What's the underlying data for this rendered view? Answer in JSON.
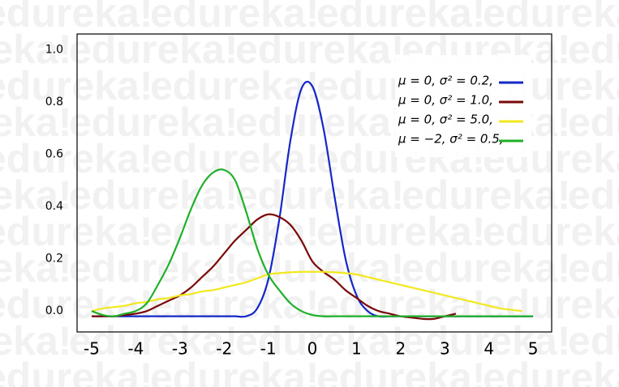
{
  "chart_data": {
    "type": "line",
    "watermark": "edureka!",
    "x": [
      -5,
      -4.75,
      -4.5,
      -4.25,
      -4,
      -3.75,
      -3.5,
      -3.25,
      -3,
      -2.75,
      -2.5,
      -2.25,
      -2,
      -1.75,
      -1.5,
      -1.25,
      -1,
      -0.75,
      -0.5,
      -0.25,
      0,
      0.25,
      0.5,
      0.75,
      1,
      1.25,
      1.5,
      1.75,
      2,
      2.25,
      2.5,
      2.75,
      3,
      3.25,
      3.5,
      3.75,
      4,
      4.25,
      4.5,
      4.75,
      5
    ],
    "series": [
      {
        "name": "μ = 0,   σ² = 0.2,",
        "color": "#1428c8",
        "values": [
          -0.02,
          -0.02,
          -0.02,
          -0.02,
          -0.02,
          -0.02,
          -0.02,
          -0.02,
          -0.02,
          -0.02,
          -0.02,
          -0.02,
          -0.02,
          -0.02,
          -0.02,
          0.01,
          0.12,
          0.35,
          0.65,
          0.85,
          0.86,
          0.7,
          0.44,
          0.2,
          0.06,
          0.0,
          -0.02,
          -0.02,
          -0.02,
          -0.02,
          -0.02,
          -0.02,
          -0.02,
          -0.02,
          -0.02,
          -0.02,
          -0.02,
          -0.02,
          -0.02,
          -0.02,
          -0.02
        ]
      },
      {
        "name": "μ = 0,   σ² = 1.0,",
        "color": "#7a0808",
        "values": [
          -0.02,
          -0.02,
          -0.02,
          -0.015,
          -0.01,
          0.0,
          0.02,
          0.04,
          0.06,
          0.09,
          0.13,
          0.17,
          0.22,
          0.27,
          0.31,
          0.35,
          0.37,
          0.36,
          0.33,
          0.27,
          0.19,
          0.15,
          0.12,
          0.08,
          0.05,
          0.02,
          0.0,
          -0.01,
          -0.02,
          -0.025,
          -0.03,
          -0.03,
          -0.02,
          -0.01,
          null,
          null,
          null,
          null,
          null,
          null,
          null
        ]
      },
      {
        "name": "μ = 0,   σ² = 5.0,",
        "color": "#f2e81e",
        "values": [
          0.0,
          0.01,
          0.015,
          0.02,
          0.03,
          0.035,
          0.045,
          0.05,
          0.06,
          0.065,
          0.075,
          0.08,
          0.09,
          0.1,
          0.11,
          0.125,
          0.14,
          0.145,
          0.148,
          0.15,
          0.15,
          0.15,
          0.148,
          0.145,
          0.14,
          0.13,
          0.12,
          0.11,
          0.1,
          0.09,
          0.08,
          0.07,
          0.06,
          0.05,
          0.04,
          0.03,
          0.02,
          0.01,
          0.005,
          0.0,
          null
        ]
      },
      {
        "name": "μ = −2, σ² = 0.5,",
        "color": "#1fb02a",
        "values": [
          0.0,
          -0.015,
          -0.02,
          -0.01,
          0.0,
          0.03,
          0.1,
          0.18,
          0.28,
          0.39,
          0.48,
          0.53,
          0.54,
          0.5,
          0.38,
          0.24,
          0.14,
          0.08,
          0.03,
          0.0,
          -0.015,
          -0.02,
          -0.02,
          -0.02,
          -0.02,
          -0.02,
          -0.02,
          -0.02,
          -0.02,
          -0.02,
          -0.02,
          -0.02,
          -0.02,
          -0.02,
          -0.02,
          -0.02,
          -0.02,
          -0.02,
          -0.02,
          -0.02,
          -0.02
        ]
      }
    ],
    "xlim": [
      -5.33,
      5.42
    ],
    "ylim": [
      -0.08,
      1.06
    ],
    "xticks": [
      -5,
      -4,
      -3,
      -2,
      -1,
      0,
      1,
      2,
      3,
      4,
      5
    ],
    "yticks": [
      {
        "value": 0,
        "label": "0.0"
      },
      0.2,
      0.4,
      0.6,
      0.8,
      {
        "value": 1,
        "label": "1.0"
      }
    ],
    "legend": "upper right",
    "grid": false
  }
}
